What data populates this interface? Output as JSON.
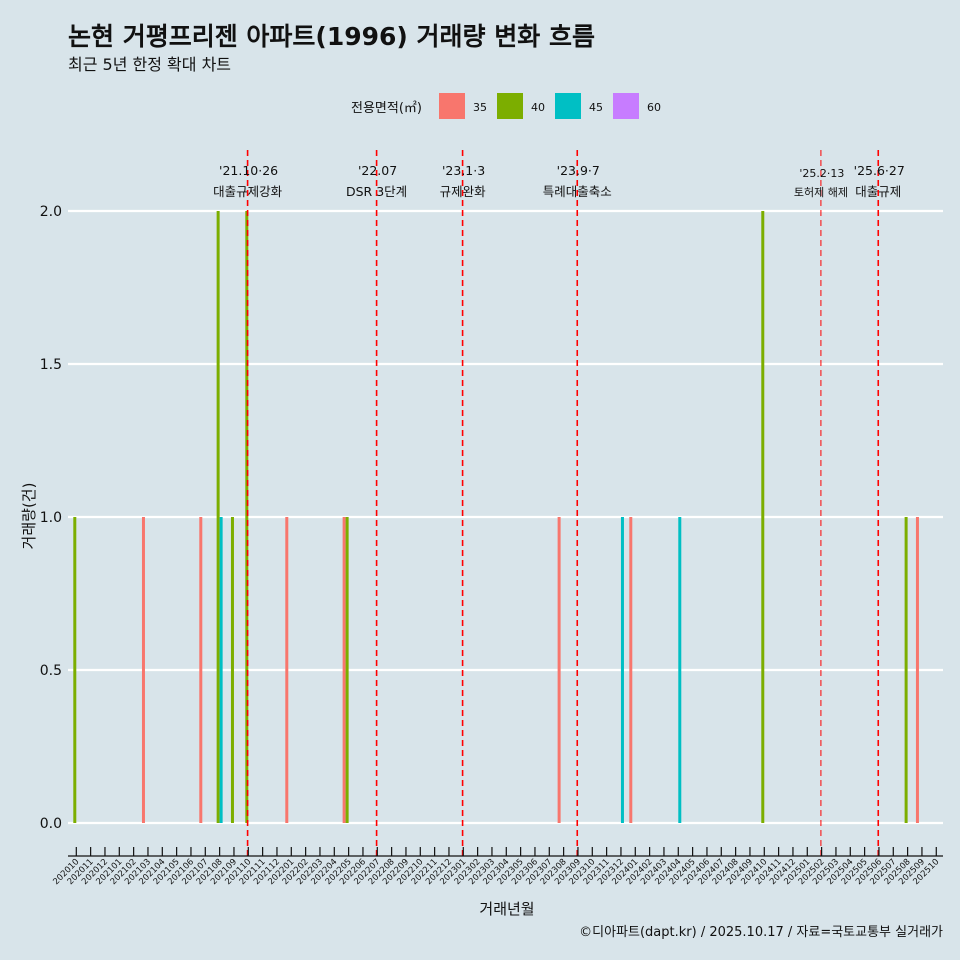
{
  "title": "논현 거평프리젠 아파트(1996) 거래량 변화 흐름",
  "subtitle": "최근 5년 한정 확대 차트",
  "caption": "©디아파트(dapt.kr) / 2025.10.17 / 자료=국토교통부 실거래가",
  "chart_data": {
    "type": "bar",
    "xlabel": "거래년월",
    "ylabel": "거래량(건)",
    "ylim": [
      0,
      2
    ],
    "yticks": [
      "0.0",
      "0.5",
      "1.0",
      "1.5",
      "2.0"
    ],
    "ytick_values": [
      0,
      0.5,
      1,
      1.5,
      2
    ],
    "grid": true,
    "legend": {
      "title": "전용면적(㎡)",
      "placement": "top",
      "entries": [
        {
          "name": "35",
          "color": "#F8766D"
        },
        {
          "name": "40",
          "color": "#7CAE00"
        },
        {
          "name": "45",
          "color": "#00BFC4"
        },
        {
          "name": "60",
          "color": "#C77CFF"
        }
      ]
    },
    "categories": [
      "202010",
      "202011",
      "202012",
      "202101",
      "202102",
      "202103",
      "202104",
      "202105",
      "202106",
      "202107",
      "202108",
      "202109",
      "202110",
      "202111",
      "202112",
      "202201",
      "202202",
      "202203",
      "202204",
      "202205",
      "202206",
      "202207",
      "202208",
      "202209",
      "202210",
      "202211",
      "202212",
      "202301",
      "202302",
      "202303",
      "202304",
      "202305",
      "202306",
      "202307",
      "202308",
      "202309",
      "202310",
      "202311",
      "202312",
      "202401",
      "202402",
      "202403",
      "202404",
      "202405",
      "202406",
      "202407",
      "202408",
      "202409",
      "202410",
      "202411",
      "202412",
      "202501",
      "202502",
      "202503",
      "202504",
      "202505",
      "202506",
      "202507",
      "202508",
      "202509",
      "202510"
    ],
    "bars": [
      {
        "month": "202010",
        "area": "40",
        "value": 1
      },
      {
        "month": "202103",
        "area": "35",
        "value": 1
      },
      {
        "month": "202107",
        "area": "35",
        "value": 1
      },
      {
        "month": "202108",
        "area": "40",
        "value": 2
      },
      {
        "month": "202108",
        "area": "45",
        "value": 1
      },
      {
        "month": "202109",
        "area": "40",
        "value": 1
      },
      {
        "month": "202110",
        "area": "40",
        "value": 2
      },
      {
        "month": "202201",
        "area": "35",
        "value": 1
      },
      {
        "month": "202205",
        "area": "35",
        "value": 1
      },
      {
        "month": "202205",
        "area": "40",
        "value": 1
      },
      {
        "month": "202308",
        "area": "35",
        "value": 1
      },
      {
        "month": "202312",
        "area": "45",
        "value": 1
      },
      {
        "month": "202401",
        "area": "35",
        "value": 1
      },
      {
        "month": "202404",
        "area": "45",
        "value": 1
      },
      {
        "month": "202410",
        "area": "40",
        "value": 2
      },
      {
        "month": "202508",
        "area": "40",
        "value": 1
      },
      {
        "month": "202509",
        "area": "35",
        "value": 1
      }
    ],
    "annotations": [
      {
        "month": "202110",
        "date": "'21.10·26",
        "label": "대출규제강화",
        "small": false
      },
      {
        "month": "202207",
        "date": "'22.07",
        "label": "DSR 3단계",
        "small": false
      },
      {
        "month": "202301",
        "date": "'23.1·3",
        "label": "규제완화",
        "small": false
      },
      {
        "month": "202309",
        "date": "'23.9·7",
        "label": "특례대출축소",
        "small": false
      },
      {
        "month": "202502",
        "date": "'25.2·13",
        "label": "토허제 해제",
        "small": true
      },
      {
        "month": "202506",
        "date": "'25.6·27",
        "label": "대출규제",
        "small": false
      }
    ],
    "line_color": "#FF0000"
  }
}
